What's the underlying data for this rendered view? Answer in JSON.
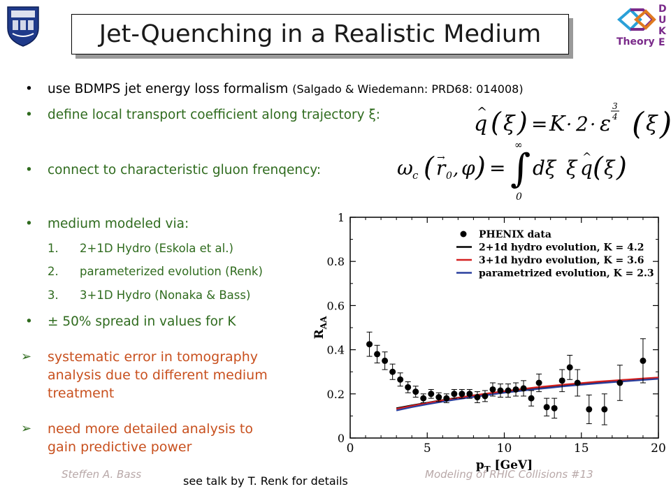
{
  "slide": {
    "title": "Jet-Quenching in a Realistic Medium",
    "bullets": [
      {
        "main": "use BDMPS jet energy loss formalism",
        "ref": "(Salgado & Wiedemann: PRD68: 014008)"
      },
      {
        "main": "define local transport coefficient along trajectory ξ:"
      },
      {
        "main": "connect to characteristic gluon frenqency:"
      },
      {
        "main": "medium modeled via:"
      }
    ],
    "sub_items": [
      {
        "num": "1.",
        "text": "2+1D Hydro (Eskola et al.)"
      },
      {
        "num": "2.",
        "text": "parameterized evolution (Renk)"
      },
      {
        "num": "3.",
        "text": "3+1D Hydro (Nonaka & Bass)"
      }
    ],
    "spread_bullet": "± 50% spread in values for K",
    "conclusions": [
      {
        "line1": "systematic error in tomography",
        "line2": "analysis due to different medium",
        "line3": "treatment"
      },
      {
        "line1": "need more detailed analysis to",
        "line2": "gain predictive power"
      }
    ],
    "footer": {
      "author": "Steffen A. Bass",
      "talk": "Modeling of RHIC Collisions  #13",
      "note": "see talk by T. Renk for details"
    },
    "right_logo": {
      "letters": [
        "D",
        "U",
        "K",
        "E"
      ],
      "word": "Theory"
    },
    "icons": {
      "bullet": "bullet-dot-icon",
      "arrow": "arrow-bullet-icon"
    }
  },
  "chart_data": {
    "type": "scatter",
    "xlabel": "p_T [GeV]",
    "ylabel": "R_AA",
    "xlim": [
      0,
      20
    ],
    "ylim": [
      0,
      1
    ],
    "xticks": [
      0,
      5,
      10,
      15,
      20
    ],
    "yticks": [
      0,
      0.2,
      0.4,
      0.6,
      0.8,
      1
    ],
    "ytick_labels": [
      "0",
      "0.2",
      "0.4",
      "0.6",
      "0.8",
      "1"
    ],
    "legend_position": "top-right",
    "grid": false,
    "points": {
      "name": "PHENIX data",
      "x": [
        1.25,
        1.75,
        2.25,
        2.75,
        3.25,
        3.75,
        4.25,
        4.75,
        5.25,
        5.75,
        6.25,
        6.75,
        7.25,
        7.75,
        8.25,
        8.75,
        9.25,
        9.75,
        10.25,
        10.75,
        11.25,
        11.75,
        12.25,
        12.75,
        13.25,
        13.75,
        14.25,
        14.75,
        15.5,
        16.5,
        17.5,
        19.0
      ],
      "y": [
        0.425,
        0.38,
        0.35,
        0.3,
        0.265,
        0.23,
        0.21,
        0.18,
        0.2,
        0.185,
        0.18,
        0.2,
        0.2,
        0.2,
        0.185,
        0.19,
        0.22,
        0.215,
        0.215,
        0.22,
        0.225,
        0.18,
        0.25,
        0.14,
        0.135,
        0.26,
        0.32,
        0.25,
        0.13,
        0.13,
        0.25,
        0.35
      ],
      "err": [
        0.055,
        0.04,
        0.04,
        0.035,
        0.03,
        0.025,
        0.025,
        0.02,
        0.02,
        0.02,
        0.02,
        0.02,
        0.02,
        0.02,
        0.025,
        0.025,
        0.03,
        0.03,
        0.03,
        0.03,
        0.035,
        0.035,
        0.04,
        0.04,
        0.045,
        0.05,
        0.055,
        0.06,
        0.065,
        0.07,
        0.08,
        0.1
      ]
    },
    "series": [
      {
        "name": "2+1d hydro evolution, K = 4.2",
        "color": "#000000",
        "x": [
          3,
          4,
          5,
          6,
          7,
          8,
          9,
          10,
          11,
          12,
          13,
          14,
          15,
          16,
          17,
          18,
          19,
          20
        ],
        "y": [
          0.135,
          0.148,
          0.16,
          0.172,
          0.183,
          0.193,
          0.202,
          0.211,
          0.219,
          0.226,
          0.232,
          0.238,
          0.244,
          0.25,
          0.256,
          0.261,
          0.266,
          0.271
        ]
      },
      {
        "name": "3+1d hydro evolution, K = 3.6",
        "color": "#d42020",
        "x": [
          3,
          4,
          5,
          6,
          7,
          8,
          9,
          10,
          11,
          12,
          13,
          14,
          15,
          16,
          17,
          18,
          19,
          20
        ],
        "y": [
          0.132,
          0.146,
          0.159,
          0.171,
          0.182,
          0.193,
          0.203,
          0.212,
          0.221,
          0.229,
          0.236,
          0.243,
          0.249,
          0.255,
          0.26,
          0.265,
          0.27,
          0.274
        ]
      },
      {
        "name": "parametrized evolution, K = 2.3",
        "color": "#2a3f9e",
        "x": [
          3,
          4,
          5,
          6,
          7,
          8,
          9,
          10,
          11,
          12,
          13,
          14,
          15,
          16,
          17,
          18,
          19,
          20
        ],
        "y": [
          0.125,
          0.14,
          0.153,
          0.165,
          0.176,
          0.186,
          0.196,
          0.205,
          0.213,
          0.221,
          0.228,
          0.235,
          0.241,
          0.247,
          0.253,
          0.258,
          0.263,
          0.268
        ]
      }
    ]
  }
}
